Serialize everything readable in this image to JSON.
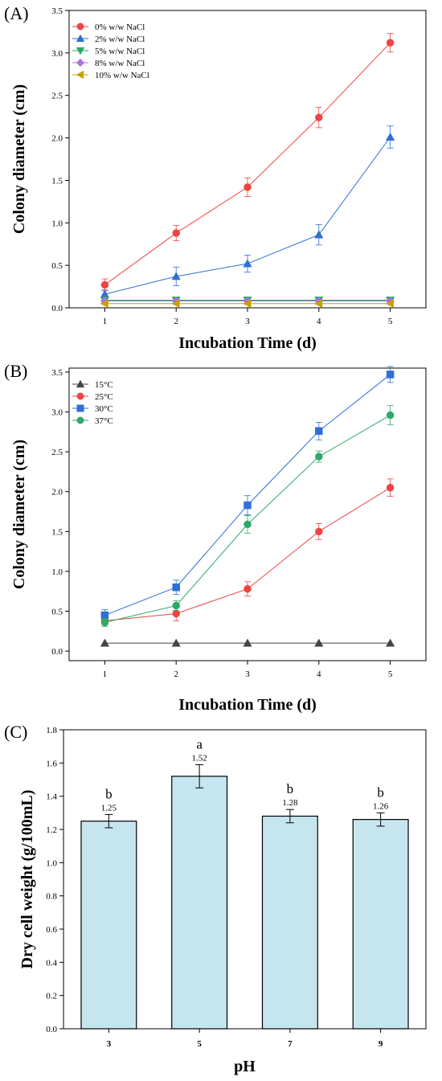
{
  "chart_data": [
    {
      "type": "line",
      "panel_label": "(A)",
      "xlabel": "Incubation Time (d)",
      "ylabel": "Colony diameter (cm)",
      "x": [
        1,
        2,
        3,
        4,
        5
      ],
      "xticks": [
        "1",
        "2",
        "3",
        "4",
        "5"
      ],
      "ylim": [
        0,
        3.5
      ],
      "yticks": [
        "0.0",
        "0.5",
        "1.0",
        "1.5",
        "2.0",
        "2.5",
        "3.0",
        "3.5"
      ],
      "legend_position": "top-left",
      "series": [
        {
          "name": "0% w/w NaCl",
          "color": "#ee4444",
          "marker": "circle",
          "values": [
            0.27,
            0.88,
            1.42,
            2.24,
            3.12
          ],
          "errors": [
            0.07,
            0.09,
            0.11,
            0.12,
            0.11
          ]
        },
        {
          "name": "2% w/w NaCl",
          "color": "#2f6fd6",
          "marker": "triangle-up",
          "values": [
            0.16,
            0.37,
            0.52,
            0.86,
            2.01
          ],
          "errors": [
            0.05,
            0.11,
            0.1,
            0.12,
            0.13
          ]
        },
        {
          "name": "5% w/w NaCl",
          "color": "#22aa66",
          "marker": "triangle-down",
          "values": [
            0.09,
            0.09,
            0.09,
            0.09,
            0.09
          ],
          "errors": [
            0.01,
            0.01,
            0.01,
            0.01,
            0.01
          ]
        },
        {
          "name": "8% w/w NaCl",
          "color": "#b070e0",
          "marker": "diamond",
          "values": [
            0.08,
            0.08,
            0.08,
            0.08,
            0.08
          ],
          "errors": [
            0.01,
            0.01,
            0.01,
            0.01,
            0.01
          ]
        },
        {
          "name": "10% w/w NaCl",
          "color": "#c8a000",
          "marker": "triangle-left",
          "values": [
            0.05,
            0.05,
            0.05,
            0.05,
            0.05
          ],
          "errors": [
            0.01,
            0.01,
            0.01,
            0.01,
            0.01
          ]
        }
      ]
    },
    {
      "type": "line",
      "panel_label": "(B)",
      "xlabel": "Incubation Time (d)",
      "ylabel": "Colony diameter (cm)",
      "x": [
        1,
        2,
        3,
        4,
        5
      ],
      "xticks": [
        "1",
        "2",
        "3",
        "4",
        "5"
      ],
      "ylim": [
        -0.12,
        3.55
      ],
      "yticks": [
        "0.0",
        "0.5",
        "1.0",
        "1.5",
        "2.0",
        "2.5",
        "3.0",
        "3.5"
      ],
      "legend_position": "top-left",
      "series": [
        {
          "name": "15°C",
          "color": "#444444",
          "marker": "triangle-up",
          "values": [
            0.1,
            0.1,
            0.1,
            0.1,
            0.1
          ],
          "errors": [
            0,
            0,
            0,
            0,
            0
          ]
        },
        {
          "name": "25°C",
          "color": "#ee4444",
          "marker": "circle",
          "values": [
            0.38,
            0.47,
            0.78,
            1.5,
            2.05
          ],
          "errors": [
            0.05,
            0.09,
            0.09,
            0.1,
            0.11
          ]
        },
        {
          "name": "30°C",
          "color": "#2f6fd6",
          "marker": "square",
          "values": [
            0.45,
            0.8,
            1.83,
            2.76,
            3.47
          ],
          "errors": [
            0.07,
            0.09,
            0.12,
            0.11,
            0.1
          ]
        },
        {
          "name": "37°C",
          "color": "#2fa868",
          "marker": "circle",
          "values": [
            0.36,
            0.57,
            1.59,
            2.44,
            2.96
          ],
          "errors": [
            0.05,
            0.06,
            0.11,
            0.07,
            0.12
          ]
        }
      ]
    },
    {
      "type": "bar",
      "panel_label": "(C)",
      "xlabel": "pH",
      "ylabel": "Dry cell weight (g/100mL)",
      "categories": [
        "3",
        "5",
        "7",
        "9"
      ],
      "values": [
        1.25,
        1.52,
        1.28,
        1.26
      ],
      "value_labels": [
        "1.25",
        "1.52",
        "1.28",
        "1.26"
      ],
      "errors": [
        0.04,
        0.07,
        0.04,
        0.04
      ],
      "significance": [
        "b",
        "a",
        "b",
        "b"
      ],
      "ylim": [
        0,
        1.8
      ],
      "yticks": [
        "0.0",
        "0.2",
        "0.4",
        "0.6",
        "0.8",
        "1.0",
        "1.2",
        "1.4",
        "1.6",
        "1.8"
      ],
      "bar_color": "#c6e6ef"
    }
  ]
}
